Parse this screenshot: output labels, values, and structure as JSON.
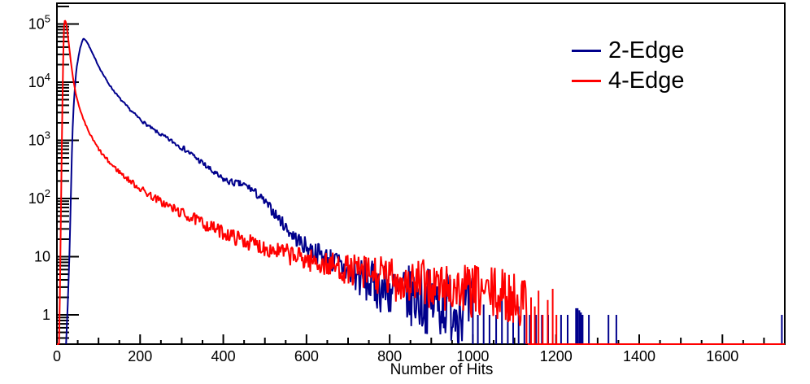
{
  "figure": {
    "background": "#ffffff"
  },
  "legend": {
    "position": "top-right",
    "items": [
      {
        "label": "2-Edge",
        "color": "#00008C"
      },
      {
        "label": "4-Edge",
        "color": "#FF0000"
      }
    ]
  },
  "chart_data": {
    "type": "line",
    "subtype": "histogram-step-logy",
    "title": "",
    "xlabel": "Number of Hits",
    "ylabel": "",
    "x_range": [
      0,
      1750
    ],
    "y_scale": "log",
    "y_range": [
      0.314,
      227000
    ],
    "grid": false,
    "legend_position": "top-right",
    "x_major_tick_step": 200,
    "x_minor_tick_step": 50,
    "x_tick_labels": [
      "0",
      "200",
      "400",
      "600",
      "800",
      "1000",
      "1200",
      "1400",
      "1600"
    ],
    "y_ticks": [
      {
        "value": 1,
        "base": "1",
        "exp": ""
      },
      {
        "value": 10,
        "base": "10",
        "exp": ""
      },
      {
        "value": 100,
        "base": "10",
        "exp": "2"
      },
      {
        "value": 1000,
        "base": "10",
        "exp": "3"
      },
      {
        "value": 10000,
        "base": "10",
        "exp": "4"
      },
      {
        "value": 100000,
        "base": "10",
        "exp": "5"
      }
    ],
    "seed": 7,
    "bin_step": 2,
    "series": [
      {
        "name": "2-Edge",
        "color": "#00008C",
        "peak": {
          "x": 63,
          "y": 56000
        },
        "envelope": [
          [
            22,
            0.33,
            0
          ],
          [
            26,
            1.5,
            0
          ],
          [
            30,
            10,
            0
          ],
          [
            33,
            80,
            0
          ],
          [
            36,
            600,
            0
          ],
          [
            39,
            2800,
            0.004
          ],
          [
            43,
            8000,
            0.004
          ],
          [
            47,
            17000,
            0.005
          ],
          [
            52,
            28000,
            0.005
          ],
          [
            56,
            39000,
            0.005
          ],
          [
            60,
            48000,
            0.005
          ],
          [
            63,
            56000,
            0.005
          ],
          [
            66,
            55000,
            0.005
          ],
          [
            70,
            52000,
            0.006
          ],
          [
            75,
            45000,
            0.006
          ],
          [
            81,
            36500,
            0.007
          ],
          [
            88,
            28500,
            0.008
          ],
          [
            95,
            22500,
            0.009
          ],
          [
            103,
            17300,
            0.01
          ],
          [
            112,
            13200,
            0.012
          ],
          [
            122,
            10000,
            0.014
          ],
          [
            133,
            7700,
            0.016
          ],
          [
            146,
            5800,
            0.018
          ],
          [
            160,
            4400,
            0.021
          ],
          [
            175,
            3400,
            0.024
          ],
          [
            192,
            2600,
            0.027
          ],
          [
            210,
            2000,
            0.03
          ],
          [
            230,
            1550,
            0.034
          ],
          [
            250,
            1250,
            0.038
          ],
          [
            270,
            1020,
            0.042
          ],
          [
            290,
            840,
            0.046
          ],
          [
            310,
            680,
            0.05
          ],
          [
            330,
            530,
            0.054
          ],
          [
            350,
            405,
            0.058
          ],
          [
            370,
            305,
            0.06
          ],
          [
            390,
            235,
            0.062
          ],
          [
            405,
            205,
            0.064
          ],
          [
            420,
            190,
            0.066
          ],
          [
            435,
            180,
            0.068
          ],
          [
            450,
            170,
            0.07
          ],
          [
            465,
            150,
            0.075
          ],
          [
            480,
            120,
            0.08
          ],
          [
            495,
            94,
            0.085
          ],
          [
            510,
            72,
            0.09
          ],
          [
            525,
            54,
            0.1
          ],
          [
            540,
            40,
            0.11
          ],
          [
            557,
            28,
            0.12
          ],
          [
            575,
            20.5,
            0.14
          ],
          [
            593,
            16,
            0.16
          ],
          [
            612,
            13,
            0.18
          ],
          [
            631,
            11,
            0.2
          ],
          [
            651,
            9.2,
            0.22
          ],
          [
            675,
            7.2,
            0.26
          ],
          [
            700,
            5.6,
            0.3
          ],
          [
            728,
            4.3,
            0.35
          ],
          [
            757,
            3.4,
            0.4
          ],
          [
            787,
            2.8,
            0.45
          ],
          [
            818,
            2.35,
            0.5
          ],
          [
            850,
            2.05,
            0.54
          ],
          [
            882,
            1.8,
            0.57
          ],
          [
            914,
            1.6,
            0.6
          ],
          [
            947,
            1.45,
            0.62
          ],
          [
            980,
            1.3,
            0.63
          ],
          [
            1000,
            1.2,
            0.63
          ]
        ],
        "baseline_segments": [],
        "spikes": [
          [
            1012,
            1
          ],
          [
            1026,
            1.5
          ],
          [
            1040,
            1
          ],
          [
            1056,
            1
          ],
          [
            1070,
            2
          ],
          [
            1084,
            1
          ],
          [
            1097,
            1
          ],
          [
            1110,
            1.4
          ],
          [
            1124,
            1
          ],
          [
            1137,
            1
          ],
          [
            1152,
            1
          ],
          [
            1166,
            1
          ],
          [
            1181,
            1
          ],
          [
            1212,
            1
          ],
          [
            1228,
            1
          ],
          [
            1248,
            1.3
          ],
          [
            1252,
            1.3
          ],
          [
            1256,
            1.2
          ],
          [
            1260,
            1.1
          ],
          [
            1264,
            1
          ],
          [
            1279,
            1
          ],
          [
            1326,
            1
          ],
          [
            1345,
            1
          ],
          [
            1743,
            1
          ]
        ]
      },
      {
        "name": "4-Edge",
        "color": "#FF0000",
        "peak": {
          "x": 19,
          "y": 115000
        },
        "envelope": [
          [
            5,
            0.33,
            0
          ],
          [
            7,
            2,
            0
          ],
          [
            9,
            25,
            0
          ],
          [
            11,
            300,
            0
          ],
          [
            13,
            3000,
            0
          ],
          [
            15,
            25000,
            0
          ],
          [
            17,
            90000,
            0.003
          ],
          [
            19,
            115000,
            0.003
          ],
          [
            21,
            110000,
            0.003
          ],
          [
            23,
            95000,
            0.004
          ],
          [
            25,
            75000,
            0.004
          ],
          [
            28,
            50000,
            0.005
          ],
          [
            31,
            32000,
            0.006
          ],
          [
            34,
            21000,
            0.007
          ],
          [
            38,
            13000,
            0.008
          ],
          [
            42,
            8600,
            0.01
          ],
          [
            47,
            5600,
            0.012
          ],
          [
            53,
            3800,
            0.014
          ],
          [
            59,
            2800,
            0.016
          ],
          [
            66,
            2050,
            0.018
          ],
          [
            74,
            1530,
            0.021
          ],
          [
            83,
            1140,
            0.024
          ],
          [
            93,
            850,
            0.028
          ],
          [
            104,
            645,
            0.032
          ],
          [
            116,
            500,
            0.036
          ],
          [
            129,
            395,
            0.04
          ],
          [
            143,
            320,
            0.045
          ],
          [
            159,
            252,
            0.05
          ],
          [
            176,
            200,
            0.056
          ],
          [
            194,
            160,
            0.062
          ],
          [
            214,
            127,
            0.068
          ],
          [
            234,
            103,
            0.075
          ],
          [
            257,
            82,
            0.082
          ],
          [
            281,
            66,
            0.09
          ],
          [
            307,
            53,
            0.098
          ],
          [
            334,
            43,
            0.107
          ],
          [
            364,
            34,
            0.116
          ],
          [
            394,
            27,
            0.125
          ],
          [
            429,
            21.5,
            0.135
          ],
          [
            464,
            17.5,
            0.145
          ],
          [
            499,
            14.5,
            0.155
          ],
          [
            539,
            12,
            0.17
          ],
          [
            579,
            9.8,
            0.19
          ],
          [
            619,
            8.2,
            0.21
          ],
          [
            659,
            7,
            0.23
          ],
          [
            699,
            6,
            0.26
          ],
          [
            744,
            5.1,
            0.34
          ],
          [
            789,
            4.4,
            0.37
          ],
          [
            839,
            3.8,
            0.4
          ],
          [
            889,
            3.3,
            0.43
          ],
          [
            939,
            2.9,
            0.45
          ],
          [
            989,
            2.6,
            0.47
          ],
          [
            1039,
            2.3,
            0.48
          ],
          [
            1089,
            2.0,
            0.48
          ],
          [
            1129,
            1.7,
            0.46
          ]
        ],
        "baseline_segments": [
          [
            0,
            5
          ],
          [
            1132,
            1750
          ]
        ],
        "spikes": [
          [
            1140,
            2
          ],
          [
            1149,
            1.4
          ],
          [
            1158,
            2.6
          ],
          [
            1168,
            1
          ],
          [
            1180,
            1.8
          ],
          [
            1192,
            2.8
          ],
          [
            1201,
            1
          ]
        ]
      }
    ]
  }
}
